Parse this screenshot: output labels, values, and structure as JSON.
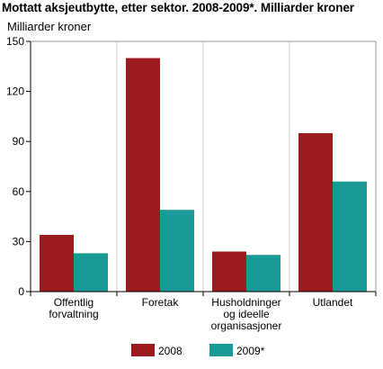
{
  "title": "Mottatt aksjeutbytte, etter sektor. 2008-2009*. Milliarder kroner",
  "chart_data": {
    "type": "bar",
    "ylabel": "Milliarder kroner",
    "xlabel": "",
    "categories": [
      [
        "Offentlig",
        "forvaltning"
      ],
      [
        "Foretak"
      ],
      [
        "Husholdninger",
        "og ideelle",
        "organisasjoner"
      ],
      [
        "Utlandet"
      ]
    ],
    "series": [
      {
        "name": "2008",
        "color": "#9b1b1f",
        "values": [
          34,
          140,
          24,
          95
        ]
      },
      {
        "name": "2009*",
        "color": "#1a9a96",
        "values": [
          23,
          49,
          22,
          66
        ]
      }
    ],
    "ylim": [
      0,
      150
    ],
    "yticks": [
      0,
      30,
      60,
      90,
      120,
      150
    ],
    "grid": "vertical separators between categories",
    "legend": "bottom-center"
  }
}
